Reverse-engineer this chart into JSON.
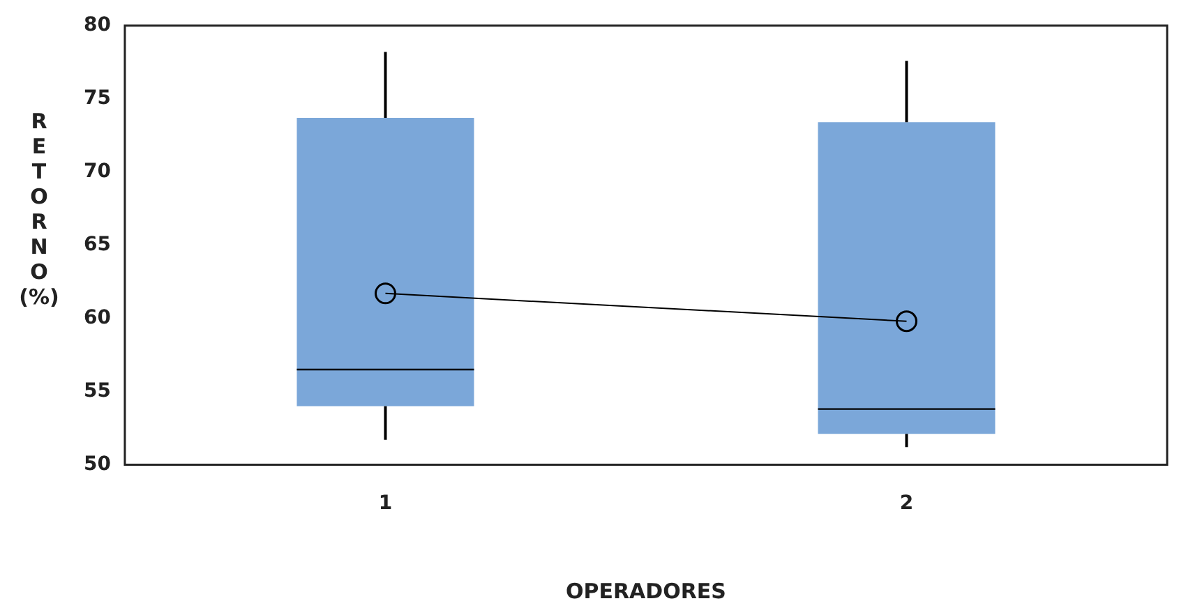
{
  "chart_data": {
    "type": "box",
    "xlabel": "OPERADORES",
    "ylabel": "RETORNO (%)",
    "categories": [
      "1",
      "2"
    ],
    "series": [
      {
        "color": "#7ba7d9",
        "boxes": [
          {
            "low": 51.7,
            "q1": 54.0,
            "median": 56.5,
            "q3": 73.7,
            "high": 78.2
          },
          {
            "low": 51.2,
            "q1": 52.1,
            "median": 53.8,
            "q3": 73.4,
            "high": 77.6
          }
        ]
      },
      {
        "type": "line",
        "color": "#000000",
        "marker": "circle",
        "x": [
          "1",
          "2"
        ],
        "values": [
          61.7,
          59.8
        ]
      }
    ],
    "ylim": [
      50,
      80
    ],
    "yticks": [
      50,
      55,
      60,
      65,
      70,
      75,
      80
    ],
    "grid": false,
    "legend": false
  }
}
